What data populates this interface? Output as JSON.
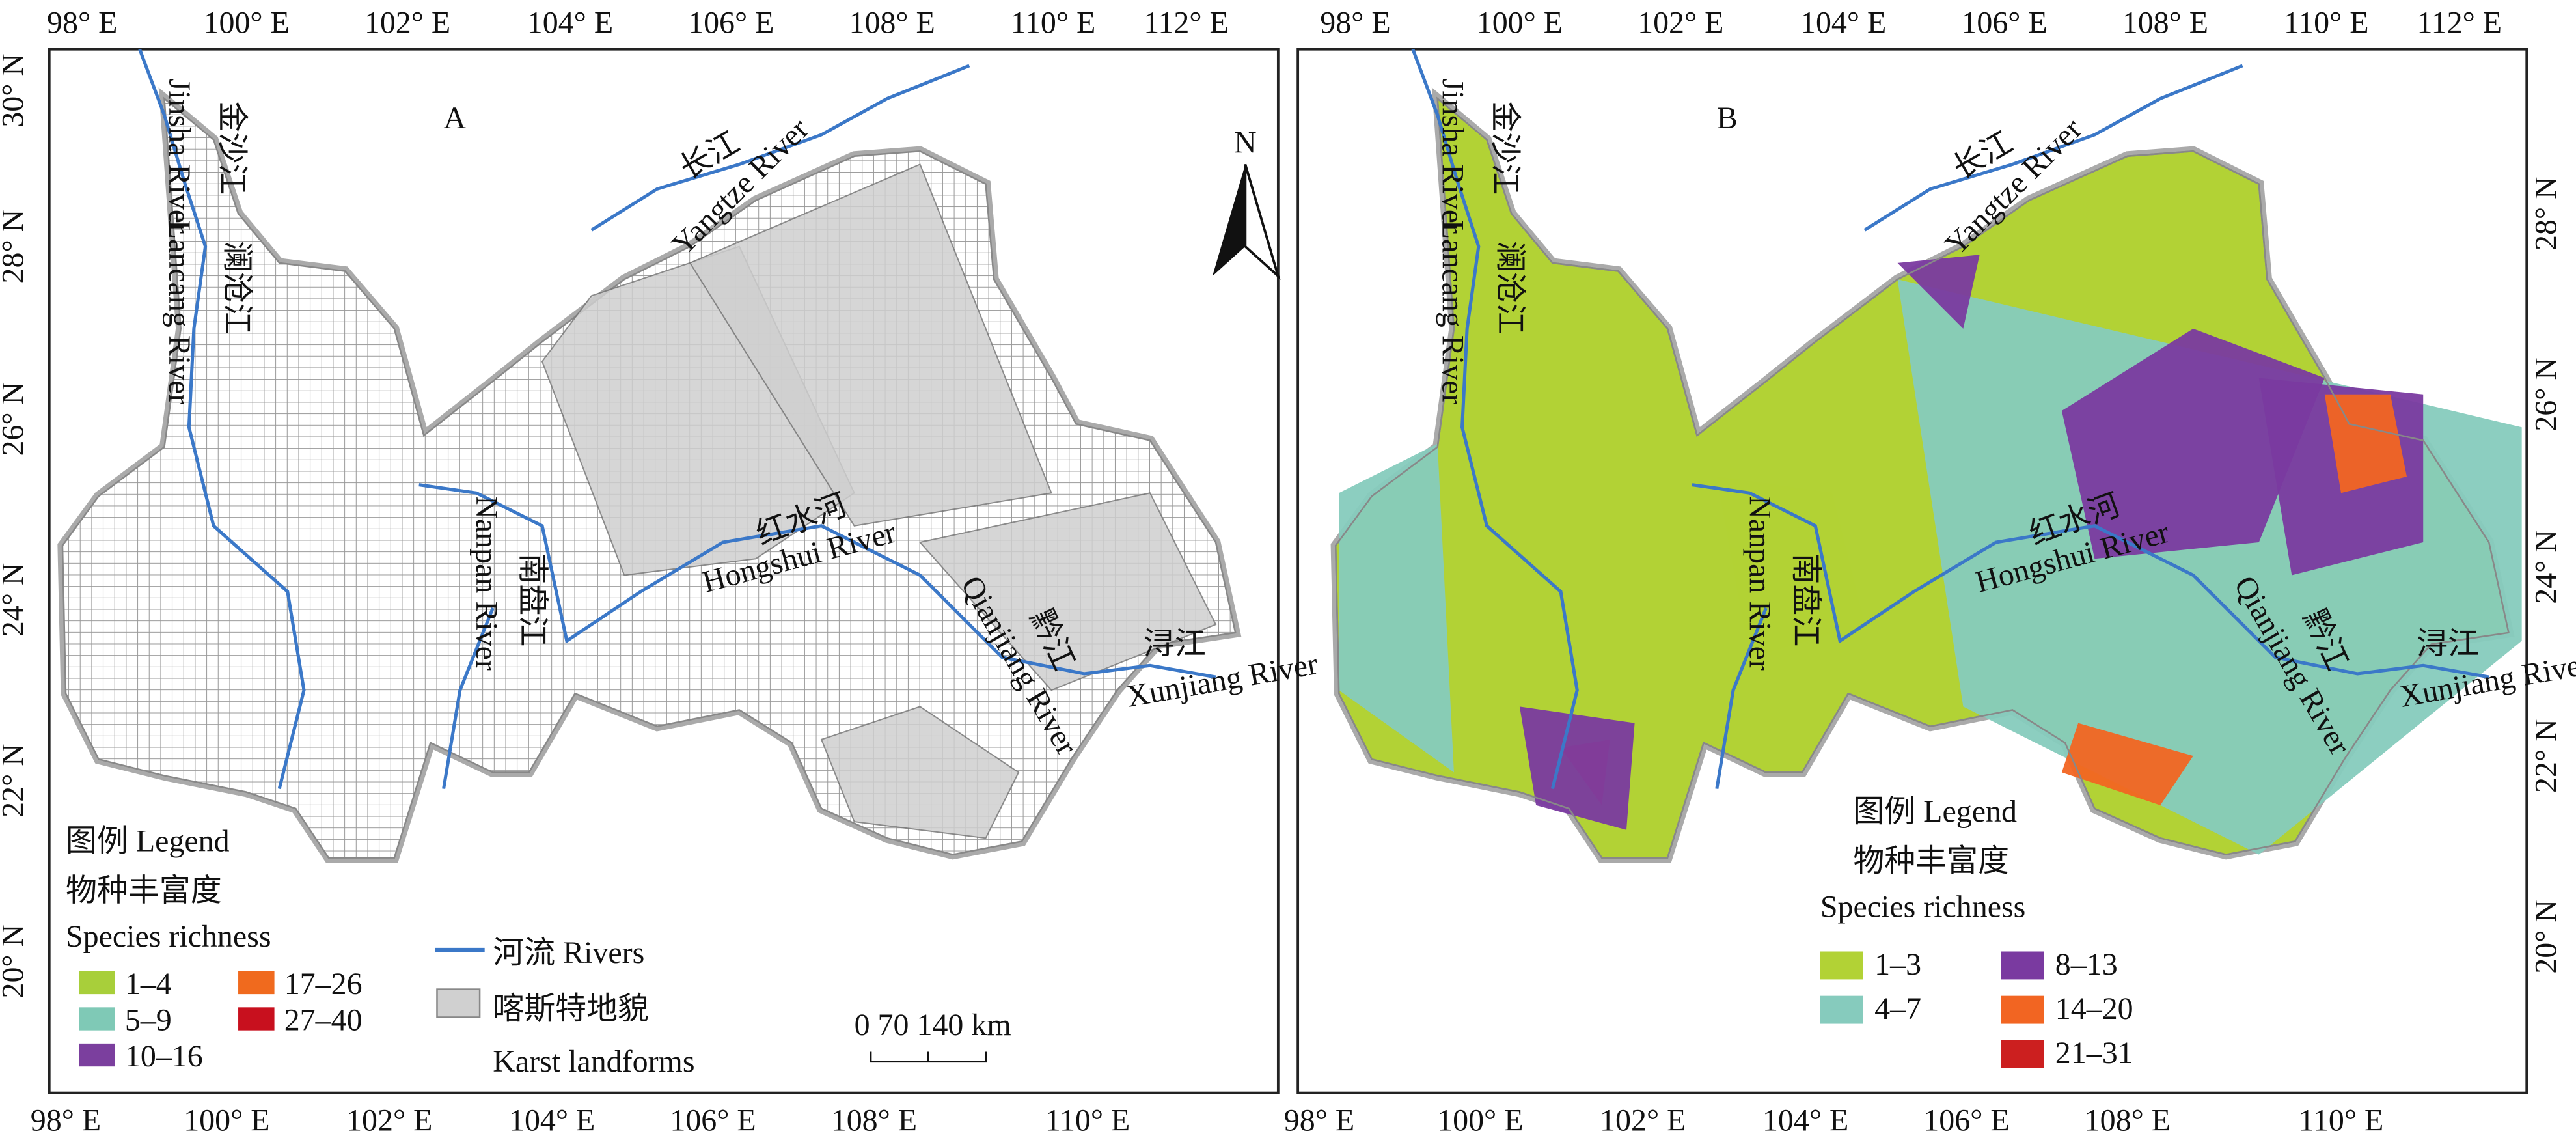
{
  "panels": [
    {
      "label": "A",
      "top_labels": [
        "98° E",
        "100° E",
        "102° E",
        "104° E",
        "106° E",
        "108° E",
        "110° E",
        "112° E"
      ],
      "bottom_labels": [
        "98° E",
        "100° E",
        "102° E",
        "104° E",
        "106° E",
        "108° E",
        "110° E"
      ],
      "side_labels": [
        "30° N",
        "28° N",
        "26° N",
        "24° N",
        "22° N",
        "20° N"
      ],
      "river_labels": [
        "金沙江",
        "Jinsha River",
        "澜沧江",
        "Lancang River",
        "长江",
        "Yangtze River",
        "南盘江",
        "Nanpan River",
        "红水河",
        "Hongshui River",
        "黔江",
        "Qianjiang River",
        "浔江",
        "Xunjiang River"
      ],
      "legend": {
        "title": "图例 Legend",
        "subtitle": "物种丰富度",
        "subtitle2": "Species richness",
        "classes": [
          {
            "label": "1–4",
            "color": "#a8cf3a"
          },
          {
            "label": "5–9",
            "color": "#7fc9b6"
          },
          {
            "label": "10–16",
            "color": "#7b3f9e"
          },
          {
            "label": "17–26",
            "color": "#f06a1e"
          },
          {
            "label": "27–40",
            "color": "#c8101e"
          }
        ]
      }
    },
    {
      "label": "B",
      "top_labels": [
        "98° E",
        "100° E",
        "102° E",
        "104° E",
        "106° E",
        "108° E",
        "110° E",
        "112° E"
      ],
      "bottom_labels": [
        "98° E",
        "100° E",
        "102° E",
        "104° E",
        "106° E",
        "108° E",
        "110° E"
      ],
      "side_labels": [
        "28° N",
        "26° N",
        "24° N",
        "22° N",
        "20° N"
      ],
      "river_labels": [
        "金沙江",
        "Jinsha River",
        "澜沧江",
        "Lancang River",
        "长江",
        "Yangtze River",
        "南盘江",
        "Nanpan River",
        "红水河",
        "Hongshui River",
        "黔江",
        "Qianjiang River",
        "浔江",
        "Xunjiang River"
      ],
      "legend": {
        "title": "图例 Legend",
        "subtitle": "物种丰富度",
        "subtitle2": "Species richness",
        "classes": [
          {
            "label": "1–3",
            "color": "#b2d235"
          },
          {
            "label": "4–7",
            "color": "#86cbbd"
          },
          {
            "label": "8–13",
            "color": "#7a3aa0"
          },
          {
            "label": "14–20",
            "color": "#f26522"
          },
          {
            "label": "21–31",
            "color": "#cc1f1f"
          }
        ]
      }
    }
  ],
  "north": "N",
  "scale_bar": "0  70 140 km",
  "extra_legend": {
    "rivers": "河流 Rivers",
    "karst": "喀斯特地貌",
    "karst_en": "Karst landforms"
  }
}
